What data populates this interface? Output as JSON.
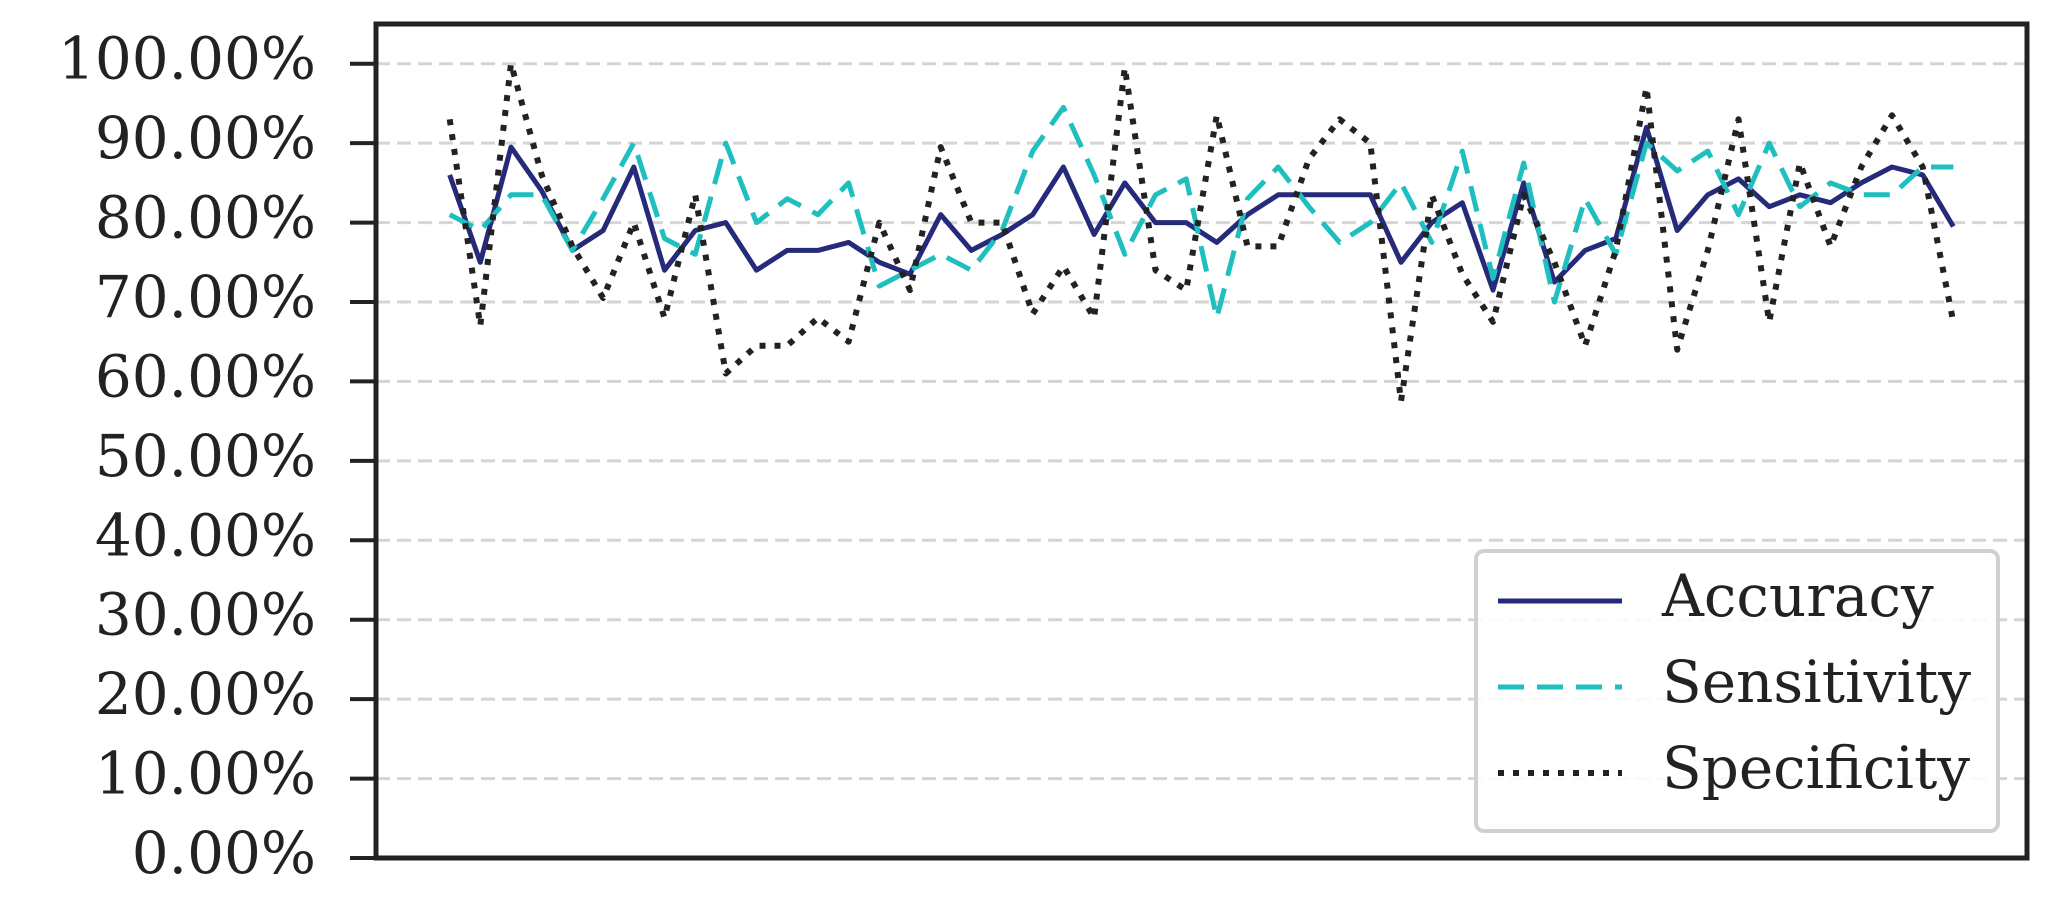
{
  "chart_data": {
    "type": "line",
    "x": [
      0,
      1,
      2,
      3,
      4,
      5,
      6,
      7,
      8,
      9,
      10,
      11,
      12,
      13,
      14,
      15,
      16,
      17,
      18,
      19,
      20,
      21,
      22,
      23,
      24,
      25,
      26,
      27,
      28,
      29,
      30,
      31,
      32,
      33,
      34,
      35,
      36,
      37,
      38,
      39,
      40,
      41,
      42,
      43,
      44,
      45,
      46,
      47,
      48,
      49
    ],
    "xlim": [
      -2.4,
      51.4
    ],
    "ylim": [
      0,
      105
    ],
    "yticks": [
      {
        "value": 0,
        "label": "0.00%"
      },
      {
        "value": 10,
        "label": "10.00%"
      },
      {
        "value": 20,
        "label": "20.00%"
      },
      {
        "value": 30,
        "label": "30.00%"
      },
      {
        "value": 40,
        "label": "40.00%"
      },
      {
        "value": 50,
        "label": "50.00%"
      },
      {
        "value": 60,
        "label": "60.00%"
      },
      {
        "value": 70,
        "label": "70.00%"
      },
      {
        "value": 80,
        "label": "80.00%"
      },
      {
        "value": 90,
        "label": "90.00%"
      },
      {
        "value": 100,
        "label": "100.00%"
      }
    ],
    "grid": true,
    "legend": "lower right",
    "series": [
      {
        "name": "Accuracy",
        "color": "#262a7a",
        "dash": "solid",
        "values": [
          86,
          75,
          89.5,
          84,
          76.5,
          79,
          87,
          74,
          79,
          80,
          74,
          76.5,
          76.5,
          77.5,
          75,
          73.5,
          81,
          76.5,
          78.5,
          81,
          87,
          78.5,
          85,
          80,
          80,
          77.5,
          81,
          83.5,
          83.5,
          83.5,
          83.5,
          75,
          80,
          82.5,
          71.5,
          85,
          72.5,
          76.5,
          78,
          92,
          79,
          83.5,
          85.5,
          82,
          83.5,
          82.5,
          85,
          87,
          86,
          79.5
        ]
      },
      {
        "name": "Sensitivity",
        "color": "#1fbfbf",
        "dash": "dashed",
        "values": [
          81,
          79,
          83.5,
          83.5,
          76.5,
          83,
          90,
          78,
          76,
          90,
          80,
          83,
          81,
          85,
          72,
          74,
          76,
          74,
          79,
          89,
          94.5,
          86,
          76,
          83.5,
          85.5,
          68,
          83,
          87,
          82,
          77.5,
          80,
          85,
          77.5,
          89,
          73,
          87.5,
          70,
          83,
          76,
          90,
          86.5,
          89,
          81,
          90,
          82,
          85,
          83.5,
          83.5,
          87,
          87
        ]
      },
      {
        "name": "Specificity",
        "color": "#222222",
        "dash": "dotted",
        "values": [
          93,
          67,
          100,
          86,
          77,
          70.5,
          80,
          68,
          83.5,
          61,
          64.5,
          64.5,
          68,
          65,
          80,
          71.5,
          89.5,
          80,
          80,
          68.5,
          74.5,
          68,
          99.5,
          74,
          71.5,
          93.5,
          77,
          77,
          88,
          93,
          90,
          57.5,
          83.5,
          73.5,
          67.5,
          83.5,
          75,
          64.5,
          76.5,
          97,
          64,
          76.5,
          93,
          67.5,
          87.5,
          77,
          87,
          93.5,
          87,
          67.5
        ]
      }
    ]
  }
}
